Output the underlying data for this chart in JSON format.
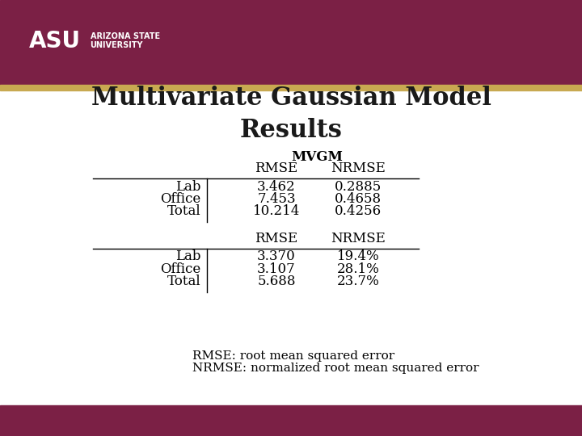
{
  "title_line1": "Multivariate Gaussian Model",
  "title_line2": "Results",
  "title_fontsize": 22,
  "title_color": "#1a1a1a",
  "header_bg": "#7b2045",
  "footer_bg": "#7b2045",
  "gold_bar_color": "#c8a951",
  "bg_color": "#ffffff",
  "table1_header": "MVGM",
  "table1_col_headers": [
    "RMSE",
    "NRMSE"
  ],
  "table1_rows": [
    [
      "Lab",
      "3.462",
      "0.2885"
    ],
    [
      "Office",
      "7.453",
      "0.4658"
    ],
    [
      "Total",
      "10.214",
      "0.4256"
    ]
  ],
  "table2_col_headers": [
    "RMSE",
    "NRMSE"
  ],
  "table2_rows": [
    [
      "Lab",
      "3.370",
      "19.4%"
    ],
    [
      "Office",
      "3.107",
      "28.1%"
    ],
    [
      "Total",
      "5.688",
      "23.7%"
    ]
  ],
  "footnote1": "RMSE: root mean squared error",
  "footnote2": "NRMSE: normalized root mean squared error",
  "footnote_fontsize": 11,
  "table_fontsize": 12,
  "header_fontsize": 12,
  "asu_text": "ASU",
  "asu_sub1": "ARIZONA STATE",
  "asu_sub2": "UNIVERSITY"
}
